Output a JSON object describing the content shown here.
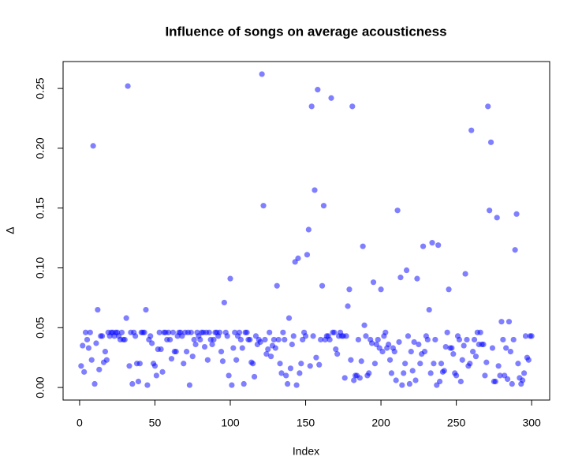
{
  "chart_data": {
    "type": "scatter",
    "title": "Influence of songs on average acousticness",
    "x_label": "Index",
    "y_label": "Δ",
    "color": "#0000ff",
    "alpha": 0.5,
    "xlim": [
      -10.96,
      311.96
    ],
    "ylim": [
      -0.0105,
      0.2725
    ],
    "xticks": [
      0,
      50,
      100,
      150,
      200,
      250,
      300
    ],
    "yticks": [
      {
        "value": 0,
        "label": "0.00"
      },
      0.05,
      {
        "value": 0.1,
        "label": "0.10"
      },
      0.15,
      {
        "value": 0.2,
        "label": "0.20"
      },
      0.25
    ],
    "x": [
      1,
      2,
      3,
      4,
      5,
      6,
      7,
      8,
      9,
      10,
      11,
      12,
      13,
      14,
      15,
      16,
      17,
      18,
      19,
      20,
      21,
      22,
      23,
      24,
      25,
      26,
      27,
      28,
      29,
      30,
      31,
      32,
      33,
      34,
      35,
      36,
      37,
      38,
      39,
      40,
      41,
      42,
      43,
      44,
      45,
      46,
      47,
      48,
      49,
      50,
      51,
      52,
      53,
      54,
      55,
      56,
      57,
      58,
      59,
      60,
      61,
      62,
      63,
      64,
      65,
      66,
      67,
      68,
      69,
      70,
      71,
      72,
      73,
      74,
      75,
      76,
      77,
      78,
      79,
      80,
      81,
      82,
      83,
      84,
      85,
      86,
      87,
      88,
      89,
      90,
      91,
      92,
      93,
      94,
      95,
      96,
      97,
      98,
      99,
      100,
      101,
      102,
      103,
      104,
      105,
      106,
      107,
      108,
      109,
      110,
      111,
      112,
      113,
      114,
      115,
      116,
      117,
      118,
      119,
      120,
      121,
      122,
      123,
      124,
      125,
      126,
      127,
      128,
      129,
      130,
      131,
      132,
      133,
      134,
      135,
      136,
      137,
      138,
      139,
      140,
      141,
      142,
      143,
      144,
      145,
      146,
      147,
      148,
      149,
      150,
      151,
      152,
      153,
      154,
      155,
      156,
      157,
      158,
      159,
      160,
      161,
      162,
      163,
      164,
      165,
      166,
      167,
      168,
      169,
      170,
      171,
      172,
      173,
      174,
      175,
      176,
      177,
      178,
      179,
      180,
      181,
      182,
      183,
      184,
      185,
      186,
      187,
      188,
      189,
      190,
      191,
      192,
      193,
      194,
      195,
      196,
      197,
      198,
      199,
      200,
      201,
      202,
      203,
      204,
      205,
      206,
      207,
      208,
      209,
      210,
      211,
      212,
      213,
      214,
      215,
      216,
      217,
      218,
      219,
      220,
      221,
      222,
      223,
      224,
      225,
      226,
      227,
      228,
      229,
      230,
      231,
      232,
      233,
      234,
      235,
      236,
      237,
      238,
      239,
      240,
      241,
      242,
      243,
      244,
      245,
      246,
      247,
      248,
      249,
      250,
      251,
      252,
      253,
      254,
      255,
      256,
      257,
      258,
      259,
      260,
      261,
      262,
      263,
      264,
      265,
      266,
      267,
      268,
      269,
      270,
      271,
      272,
      273,
      274,
      275,
      276,
      277,
      278,
      279,
      280,
      281,
      282,
      283,
      284,
      285,
      286,
      287,
      288,
      289,
      290,
      291,
      292,
      293,
      294,
      295,
      296,
      297,
      298,
      299,
      300
    ],
    "values": [
      0.018,
      0.035,
      0.013,
      0.046,
      0.04,
      0.033,
      0.046,
      0.023,
      0.202,
      0.003,
      0.037,
      0.065,
      0.015,
      0.043,
      0.043,
      0.021,
      0.03,
      0.023,
      0.046,
      0.043,
      0.046,
      0.046,
      0.043,
      0.046,
      0.046,
      0.043,
      0.04,
      0.046,
      0.04,
      0.04,
      0.058,
      0.252,
      0.018,
      0.046,
      0.003,
      0.046,
      0.043,
      0.02,
      0.005,
      0.02,
      0.046,
      0.046,
      0.046,
      0.065,
      0.002,
      0.04,
      0.043,
      0.037,
      0.02,
      0.018,
      0.01,
      0.032,
      0.046,
      0.032,
      0.013,
      0.046,
      0.046,
      0.04,
      0.046,
      0.04,
      0.024,
      0.046,
      0.03,
      0.03,
      0.043,
      0.046,
      0.046,
      0.043,
      0.02,
      0.046,
      0.03,
      0.046,
      0.002,
      0.046,
      0.026,
      0.04,
      0.036,
      0.046,
      0.043,
      0.04,
      0.046,
      0.046,
      0.034,
      0.046,
      0.023,
      0.046,
      0.04,
      0.036,
      0.04,
      0.046,
      0.046,
      0.043,
      0.046,
      0.03,
      0.022,
      0.071,
      0.046,
      0.043,
      0.01,
      0.091,
      0.002,
      0.033,
      0.046,
      0.023,
      0.043,
      0.046,
      0.04,
      0.033,
      0.003,
      0.046,
      0.046,
      0.04,
      0.04,
      0.021,
      0.02,
      0.009,
      0.043,
      0.036,
      0.04,
      0.038,
      0.262,
      0.152,
      0.04,
      0.028,
      0.032,
      0.046,
      0.026,
      0.035,
      0.04,
      0.033,
      0.085,
      0.04,
      0.02,
      0.012,
      0.046,
      0.04,
      0.01,
      0.003,
      0.058,
      0.016,
      0.036,
      0.043,
      0.105,
      0.002,
      0.108,
      0.012,
      0.02,
      0.04,
      0.046,
      0.043,
      0.111,
      0.132,
      0.018,
      0.235,
      0.043,
      0.165,
      0.025,
      0.249,
      0.019,
      0.04,
      0.085,
      0.152,
      0.04,
      0.043,
      0.043,
      0.04,
      0.242,
      0.046,
      0.046,
      0.032,
      0.028,
      0.043,
      0.046,
      0.043,
      0.043,
      0.008,
      0.043,
      0.068,
      0.082,
      0.023,
      0.235,
      0.006,
      0.01,
      0.01,
      0.04,
      0.008,
      0.022,
      0.118,
      0.052,
      0.043,
      0.01,
      0.012,
      0.04,
      0.037,
      0.088,
      0.02,
      0.036,
      0.04,
      0.033,
      0.082,
      0.03,
      0.043,
      0.046,
      0.033,
      0.036,
      0.023,
      0.012,
      0.033,
      0.03,
      0.006,
      0.148,
      0.038,
      0.092,
      0.002,
      0.012,
      0.02,
      0.098,
      0.043,
      0.003,
      0.03,
      0.014,
      0.038,
      0.006,
      0.091,
      0.036,
      0.02,
      0.028,
      0.118,
      0.03,
      0.043,
      0.04,
      0.065,
      0.012,
      0.121,
      0.02,
      0.04,
      0.002,
      0.119,
      0.005,
      0.02,
      0.013,
      0.014,
      0.034,
      0.046,
      0.082,
      0.033,
      0.033,
      0.028,
      0.012,
      0.01,
      0.043,
      0.04,
      0.005,
      0.023,
      0.035,
      0.095,
      0.04,
      0.018,
      0.02,
      0.215,
      0.03,
      0.04,
      0.026,
      0.046,
      0.036,
      0.046,
      0.036,
      0.036,
      0.01,
      0.021,
      0.235,
      0.148,
      0.205,
      0.033,
      0.005,
      0.005,
      0.142,
      0.018,
      0.01,
      0.055,
      0.04,
      0.01,
      0.033,
      0.007,
      0.055,
      0.03,
      0.003,
      0.04,
      0.115,
      0.145,
      0.02,
      0.008,
      0.003,
      0.006,
      0.012,
      0.043,
      0.025,
      0.023,
      0.043,
      0.043
    ]
  }
}
